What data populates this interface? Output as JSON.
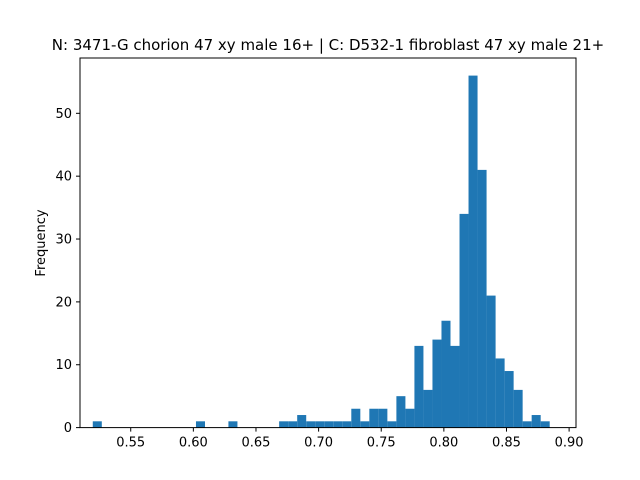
{
  "chart_data": {
    "type": "bar",
    "title": "N: 3471-G chorion 47 xy male 16+ | C: D532-1 fibroblast 47 xy male 21+",
    "xlabel": "",
    "ylabel": "Frequency",
    "xlim": [
      0.5095,
      0.9055
    ],
    "ylim": [
      0,
      58.8
    ],
    "x_ticks": [
      0.55,
      0.6,
      0.65,
      0.7,
      0.75,
      0.8,
      0.85,
      0.9
    ],
    "x_tick_labels": [
      "0.55",
      "0.60",
      "0.65",
      "0.70",
      "0.75",
      "0.80",
      "0.85",
      "0.90"
    ],
    "y_ticks": [
      0,
      10,
      20,
      30,
      40,
      50
    ],
    "y_tick_labels": [
      "0",
      "10",
      "20",
      "30",
      "40",
      "50"
    ],
    "bin_width": 0.0072,
    "bins": [
      {
        "x0": 0.5197,
        "count": 1
      },
      {
        "x0": 0.6021,
        "count": 1
      },
      {
        "x0": 0.628,
        "count": 1
      },
      {
        "x0": 0.6685,
        "count": 1
      },
      {
        "x0": 0.6757,
        "count": 1
      },
      {
        "x0": 0.6829,
        "count": 2
      },
      {
        "x0": 0.6901,
        "count": 1
      },
      {
        "x0": 0.6973,
        "count": 1
      },
      {
        "x0": 0.7045,
        "count": 1
      },
      {
        "x0": 0.7117,
        "count": 1
      },
      {
        "x0": 0.7189,
        "count": 1
      },
      {
        "x0": 0.7261,
        "count": 3
      },
      {
        "x0": 0.7333,
        "count": 1
      },
      {
        "x0": 0.7405,
        "count": 3
      },
      {
        "x0": 0.7477,
        "count": 3
      },
      {
        "x0": 0.7549,
        "count": 1
      },
      {
        "x0": 0.7621,
        "count": 5
      },
      {
        "x0": 0.7693,
        "count": 3
      },
      {
        "x0": 0.7765,
        "count": 13
      },
      {
        "x0": 0.7837,
        "count": 6
      },
      {
        "x0": 0.7909,
        "count": 14
      },
      {
        "x0": 0.7981,
        "count": 17
      },
      {
        "x0": 0.8053,
        "count": 13
      },
      {
        "x0": 0.8125,
        "count": 34
      },
      {
        "x0": 0.8197,
        "count": 56
      },
      {
        "x0": 0.8269,
        "count": 41
      },
      {
        "x0": 0.8341,
        "count": 21
      },
      {
        "x0": 0.8413,
        "count": 11
      },
      {
        "x0": 0.8485,
        "count": 9
      },
      {
        "x0": 0.8557,
        "count": 6
      },
      {
        "x0": 0.8629,
        "count": 1
      },
      {
        "x0": 0.8701,
        "count": 2
      },
      {
        "x0": 0.8773,
        "count": 1
      }
    ],
    "grid": false,
    "legend": "none",
    "bar_color": "#1f77b4"
  }
}
